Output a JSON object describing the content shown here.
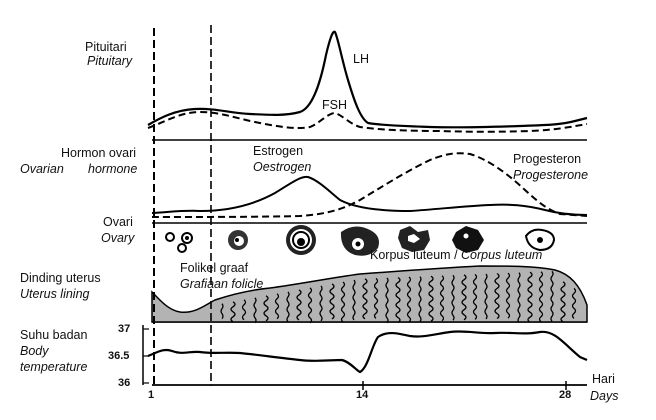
{
  "title": "",
  "panels": {
    "pituitary": {
      "label": "Pituitari",
      "label_en": "Pituitary",
      "lh": "LH",
      "fsh": "FSH"
    },
    "hormone": {
      "label": "Hormon ovari",
      "label_en_1": "Ovarian",
      "label_en_2": "hormone",
      "estrogen": "Estrogen",
      "estrogen_en": "Oestrogen",
      "progesterone": "Progesteron",
      "progesterone_en": "Progesterone"
    },
    "ovary": {
      "label": "Ovari",
      "label_en": "Ovary",
      "graafian": "Folikel graaf",
      "graafian_en": "Grafiaan folicle",
      "corpus": "Korpus luteum / ",
      "corpus_en": "Corpus luteum"
    },
    "uterus": {
      "label": "Dinding uterus",
      "label_en": "Uterus lining"
    },
    "temperature": {
      "label": "Suhu badan",
      "label_en_1": "Body",
      "label_en_2": "temperature",
      "ticks": [
        "37",
        "36.5",
        "36"
      ]
    }
  },
  "x_axis": {
    "label": "Hari",
    "label_en": "Days",
    "ticks": [
      "1",
      "14",
      "28"
    ]
  },
  "colors": {
    "line": "#000000",
    "uterus_fill": "#b3b3b3",
    "panel_bg": "#ffffff"
  }
}
